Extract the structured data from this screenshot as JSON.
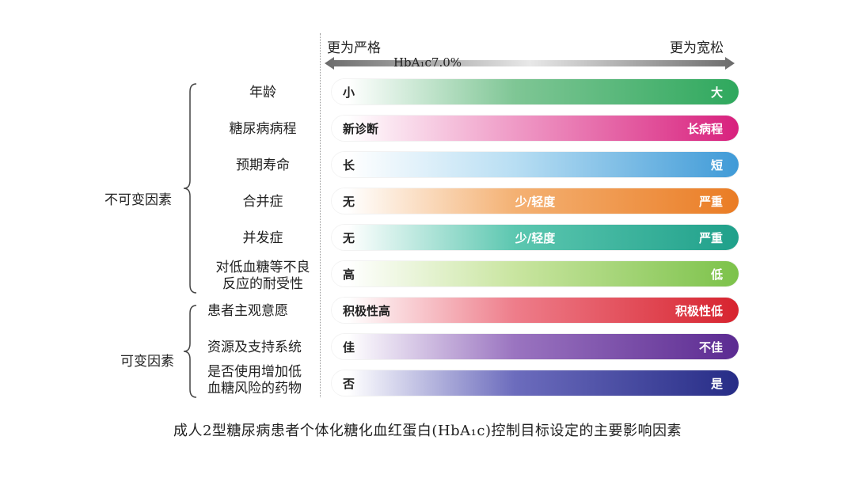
{
  "top": {
    "left_label": "更为严格",
    "right_label": "更为宽松",
    "axis_label": "HbA₁c7.0%"
  },
  "groups": [
    {
      "label": "不可变因素"
    },
    {
      "label": "可变因素"
    }
  ],
  "rows": [
    {
      "label_lines": [
        "年龄"
      ],
      "left": "小",
      "middle": "",
      "right": "大",
      "gradient": [
        "#ffffff",
        "#7fc695",
        "#2ea85d"
      ]
    },
    {
      "label_lines": [
        "糖尿病病程"
      ],
      "left": "新诊断",
      "middle": "",
      "right": "长病程",
      "gradient": [
        "#ffffff",
        "#ef9ac6",
        "#d8207d"
      ]
    },
    {
      "label_lines": [
        "预期寿命"
      ],
      "left": "长",
      "middle": "",
      "right": "短",
      "gradient": [
        "#ffffff",
        "#b8def3",
        "#3f9ad7"
      ]
    },
    {
      "label_lines": [
        "合并症"
      ],
      "left": "无",
      "middle": "少/轻度",
      "right": "严重",
      "gradient": [
        "#ffffff",
        "#f4b173",
        "#ea7c24"
      ]
    },
    {
      "label_lines": [
        "并发症"
      ],
      "left": "无",
      "middle": "少/轻度",
      "right": "严重",
      "gradient": [
        "#ffffff",
        "#5cc7b0",
        "#1fa08a"
      ]
    },
    {
      "label_lines": [
        "对低血糖等不良",
        "反应的耐受性"
      ],
      "left": "高",
      "middle": "",
      "right": "低",
      "gradient": [
        "#ffffff",
        "#c9e5a0",
        "#7cc24a"
      ]
    },
    {
      "label_lines": [
        "患者主观意愿"
      ],
      "left": "积极性高",
      "middle": "",
      "right": "积极性低",
      "gradient": [
        "#ffffff",
        "#ee7d8a",
        "#d7232e"
      ]
    },
    {
      "label_lines": [
        "资源及支持系统"
      ],
      "left": "佳",
      "middle": "",
      "right": "不佳",
      "gradient": [
        "#ffffff",
        "#9a74c0",
        "#5b2a91"
      ]
    },
    {
      "label_lines": [
        "是否使用增加低",
        "血糖风险的药物"
      ],
      "left": "否",
      "middle": "",
      "right": "是",
      "gradient": [
        "#ffffff",
        "#6c6cbd",
        "#262c86"
      ]
    }
  ],
  "caption": "成人2型糖尿病患者个体化糖化血红蛋白(HbA₁c)控制目标设定的主要影响因素"
}
